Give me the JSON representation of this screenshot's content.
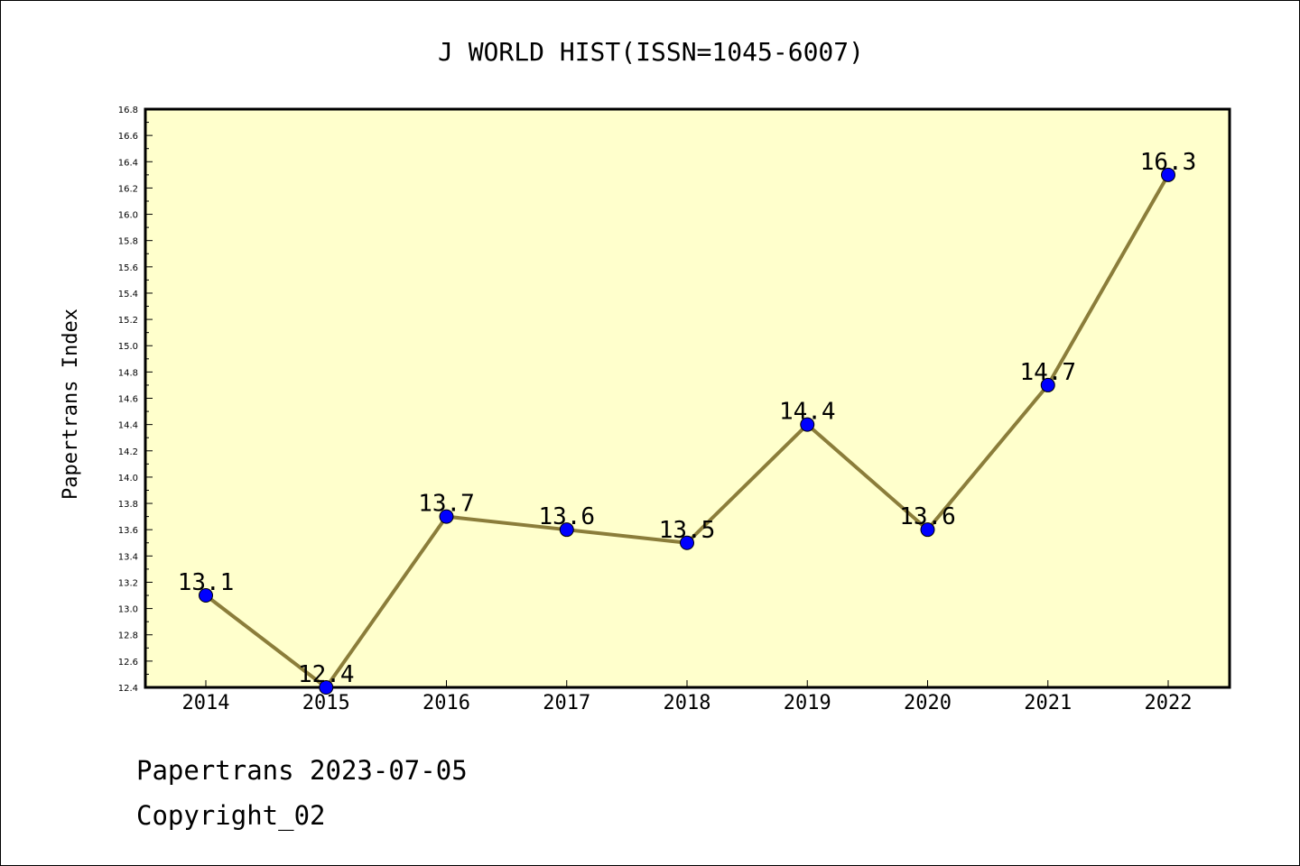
{
  "colors": {
    "plot_background": "#ffffcc",
    "line": "#8b7d3a",
    "marker": "#0000ff",
    "axis": "#000000"
  },
  "chart_data": {
    "type": "line",
    "title": "J WORLD HIST(ISSN=1045-6007)",
    "xlabel": "",
    "ylabel": "Papertrans Index",
    "categories": [
      "2014",
      "2015",
      "2016",
      "2017",
      "2018",
      "2019",
      "2020",
      "2021",
      "2022"
    ],
    "series": [
      {
        "values": [
          13.1,
          12.4,
          13.7,
          13.6,
          13.5,
          14.4,
          13.6,
          14.7,
          16.3
        ],
        "labels": [
          "13.1",
          "12.4",
          "13.7",
          "13.6",
          "13.5",
          "14.4",
          "13.6",
          "14.7",
          "16.3"
        ]
      }
    ],
    "ylim": [
      12.4,
      16.8
    ],
    "yticks": [
      "12.4",
      "12.6",
      "12.8",
      "13.0",
      "13.2",
      "13.4",
      "13.6",
      "13.8",
      "14.0",
      "14.2",
      "14.4",
      "14.6",
      "14.8",
      "15.0",
      "15.2",
      "15.4",
      "15.6",
      "15.8",
      "16.0",
      "16.2",
      "16.4",
      "16.6",
      "16.8"
    ],
    "grid": false,
    "legend": "none"
  },
  "footer": {
    "date_line": "Papertrans 2023-07-05",
    "copyright_line": "Copyright_02"
  }
}
